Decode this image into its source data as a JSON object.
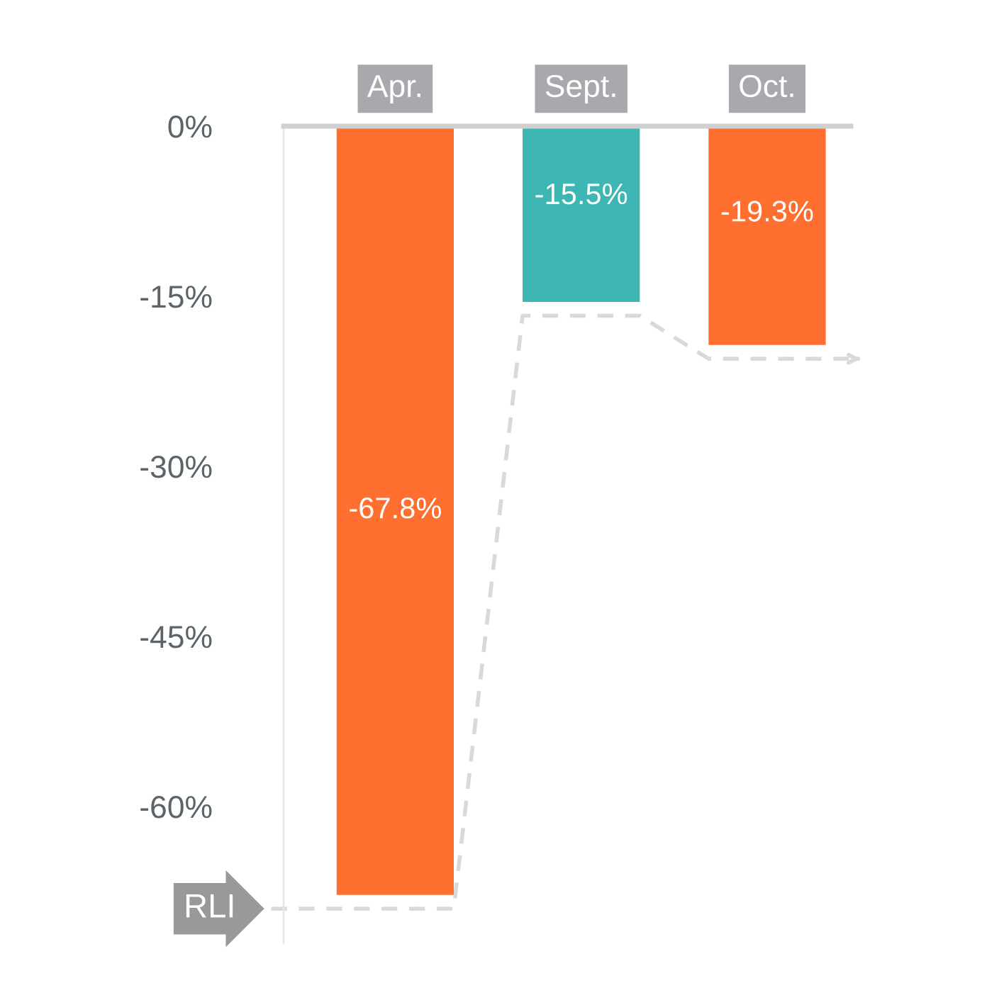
{
  "chart_data": {
    "type": "bar",
    "categories": [
      "Apr.",
      "Sept.",
      "Oct."
    ],
    "values": [
      -67.8,
      -15.5,
      -19.3
    ],
    "colors": [
      "#ff6f30",
      "#3eb6b3",
      "#ff6f30"
    ],
    "annotations": [
      "RLI"
    ],
    "value_labels": [
      "-67.8%",
      "-15.5%",
      "-19.3%"
    ],
    "ylim": [
      -72,
      0
    ],
    "yticks": [
      {
        "value": 0,
        "label": "0%"
      },
      {
        "value": -15,
        "label": "-15%"
      },
      {
        "value": -30,
        "label": "-30%"
      },
      {
        "value": -45,
        "label": "-45%"
      },
      {
        "value": -60,
        "label": "-60%"
      }
    ],
    "grid": false,
    "legend": false
  }
}
